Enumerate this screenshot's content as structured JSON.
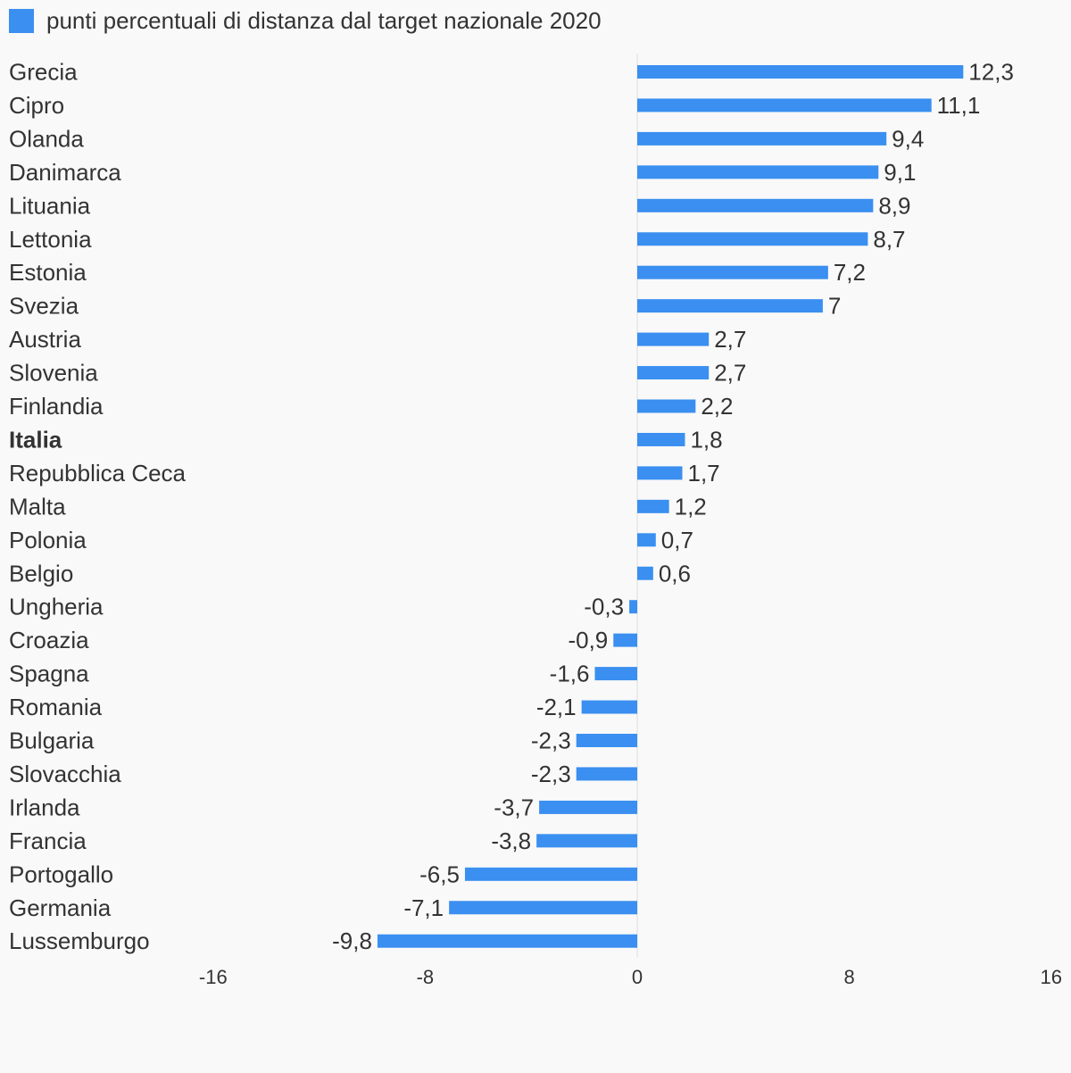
{
  "legend": {
    "label": "punti percentuali di distanza dal target nazionale 2020",
    "color": "#3a8ff0"
  },
  "chart_data": {
    "type": "bar",
    "orientation": "horizontal",
    "title": "",
    "xlabel": "",
    "ylabel": "",
    "xlim": [
      -16,
      16
    ],
    "ticks": [
      -16,
      -8,
      0,
      8,
      16
    ],
    "tick_labels": [
      "-16",
      "-8",
      "0",
      "8",
      "16"
    ],
    "bar_color": "#3a8ff0",
    "zero_line_color": "#dddddd",
    "grid": false,
    "legend_position": "top-left",
    "highlighted_category": "Italia",
    "categories": [
      "Grecia",
      "Cipro",
      "Olanda",
      "Danimarca",
      "Lituania",
      "Lettonia",
      "Estonia",
      "Svezia",
      "Austria",
      "Slovenia",
      "Finlandia",
      "Italia",
      "Repubblica Ceca",
      "Malta",
      "Polonia",
      "Belgio",
      "Ungheria",
      "Croazia",
      "Spagna",
      "Romania",
      "Bulgaria",
      "Slovacchia",
      "Irlanda",
      "Francia",
      "Portogallo",
      "Germania",
      "Lussemburgo"
    ],
    "series": [
      {
        "name": "punti percentuali di distanza dal target nazionale 2020",
        "values": [
          12.3,
          11.1,
          9.4,
          9.1,
          8.9,
          8.7,
          7.2,
          7,
          2.7,
          2.7,
          2.2,
          1.8,
          1.7,
          1.2,
          0.7,
          0.6,
          -0.3,
          -0.9,
          -1.6,
          -2.1,
          -2.3,
          -2.3,
          -3.7,
          -3.8,
          -6.5,
          -7.1,
          -9.8
        ],
        "value_labels": [
          "12,3",
          "11,1",
          "9,4",
          "9,1",
          "8,9",
          "8,7",
          "7,2",
          "7",
          "2,7",
          "2,7",
          "2,2",
          "1,8",
          "1,7",
          "1,2",
          "0,7",
          "0,6",
          "-0,3",
          "-0,9",
          "-1,6",
          "-2,1",
          "-2,3",
          "-2,3",
          "-3,7",
          "-3,8",
          "-6,5",
          "-7,1",
          "-9,8"
        ]
      }
    ]
  }
}
